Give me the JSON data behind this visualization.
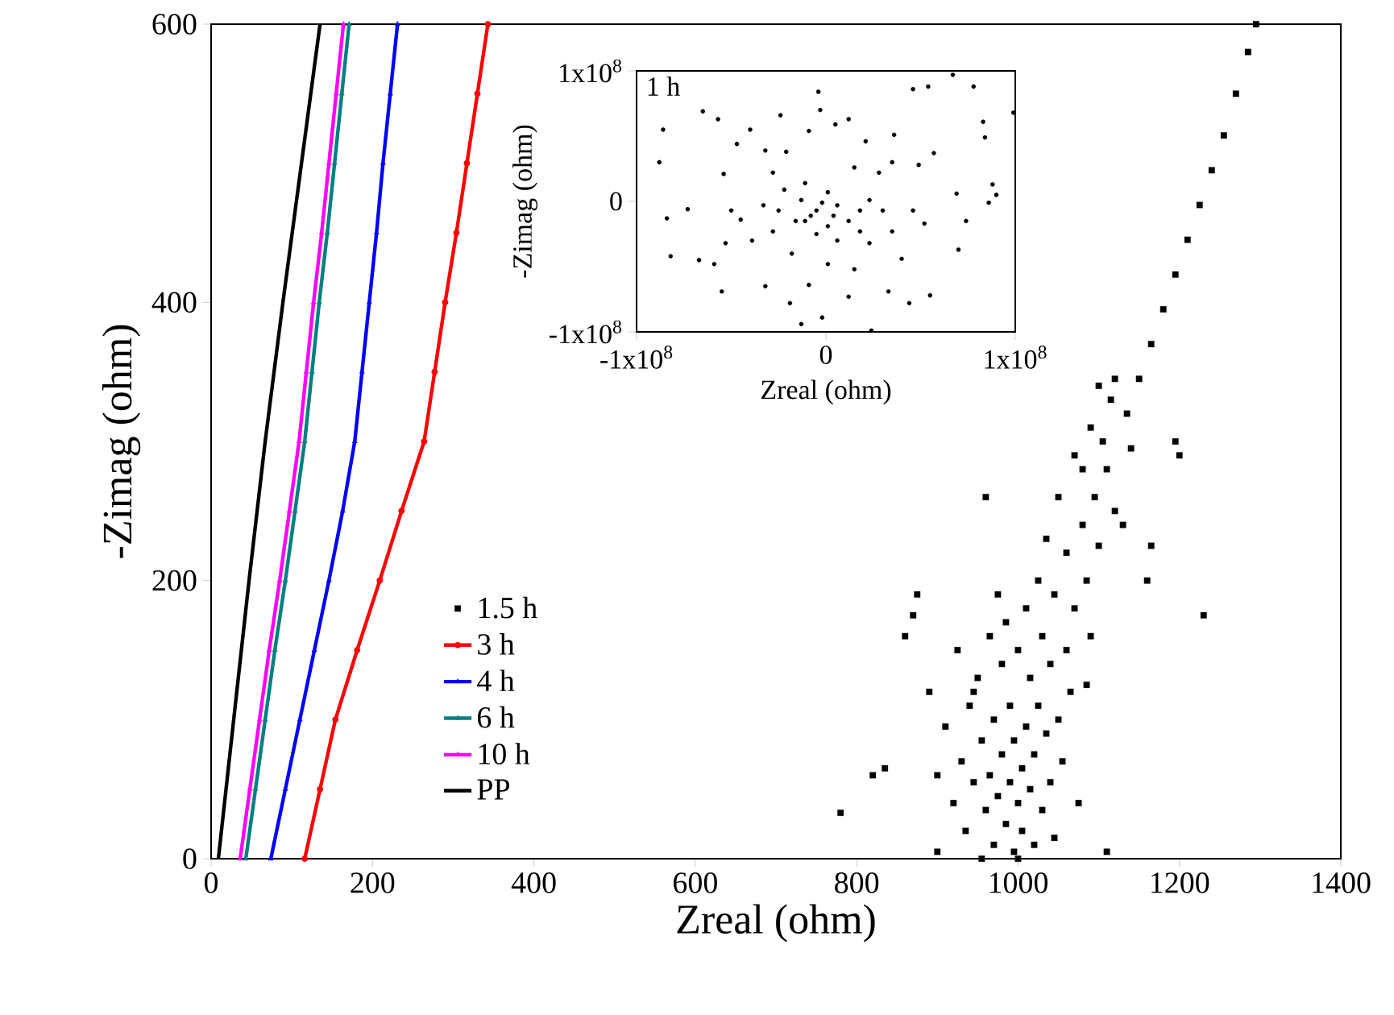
{
  "chart_data": [
    {
      "type": "scatter",
      "xlabel": "Zreal (ohm)",
      "ylabel": "-Zimag (ohm)",
      "xlim": [
        0,
        1400
      ],
      "ylim": [
        0,
        600
      ],
      "xticks": [
        0,
        200,
        400,
        600,
        800,
        1000,
        1200,
        1400
      ],
      "yticks": [
        0,
        200,
        400,
        600
      ],
      "legend": "bottom left",
      "grid": false,
      "series": [
        {
          "name": "1.5 h",
          "color": "#000000",
          "marker": "square",
          "type": "scatter",
          "x": [
            780,
            820,
            835,
            860,
            870,
            875,
            890,
            900,
            910,
            920,
            925,
            930,
            935,
            940,
            945,
            950,
            955,
            955,
            960,
            965,
            965,
            970,
            970,
            975,
            980,
            980,
            985,
            985,
            990,
            990,
            995,
            995,
            1000,
            1000,
            1005,
            1005,
            1010,
            1010,
            1015,
            1015,
            1020,
            1020,
            1025,
            1025,
            1030,
            1030,
            1035,
            1035,
            1040,
            1040,
            1045,
            1045,
            1050,
            1050,
            1055,
            1060,
            1060,
            1065,
            1070,
            1070,
            1075,
            1080,
            1080,
            1085,
            1090,
            1090,
            1095,
            1100,
            1100,
            1105,
            1110,
            1110,
            1115,
            1120,
            1120,
            1130,
            1140,
            1160,
            1165,
            1195,
            1200,
            1230,
            960,
            900,
            945,
            1085,
            1000,
            975,
            1135,
            1150,
            1165,
            1180,
            1195,
            1210,
            1225,
            1240,
            1255,
            1270,
            1285,
            1295
          ],
          "values": [
            33,
            60,
            65,
            160,
            175,
            190,
            120,
            5,
            95,
            40,
            150,
            70,
            20,
            110,
            55,
            130,
            0,
            85,
            35,
            160,
            60,
            10,
            100,
            45,
            75,
            140,
            25,
            170,
            55,
            110,
            5,
            85,
            40,
            150,
            65,
            20,
            95,
            180,
            50,
            130,
            10,
            75,
            200,
            110,
            35,
            160,
            90,
            230,
            55,
            140,
            15,
            190,
            100,
            260,
            70,
            220,
            150,
            120,
            290,
            180,
            40,
            240,
            280,
            200,
            310,
            160,
            260,
            340,
            225,
            300,
            5,
            280,
            330,
            250,
            345,
            240,
            295,
            200,
            225,
            300,
            290,
            175,
            260,
            60,
            120,
            125,
            0,
            190,
            320,
            345,
            370,
            395,
            420,
            445,
            470,
            495,
            520,
            550,
            580,
            600
          ]
        },
        {
          "name": "3 h",
          "color": "#ff0000",
          "marker": "circle",
          "type": "line",
          "x": [
            116,
            135,
            154,
            181,
            209,
            236,
            264,
            277,
            290,
            304,
            317,
            330,
            343
          ],
          "values": [
            0,
            50,
            100,
            150,
            200,
            250,
            300,
            350,
            400,
            450,
            500,
            550,
            600
          ]
        },
        {
          "name": "4 h",
          "color": "#0000ff",
          "marker": "triangle",
          "type": "line",
          "x": [
            74,
            92,
            110,
            128,
            146,
            163,
            178,
            187,
            196,
            205,
            213,
            222,
            231
          ],
          "values": [
            0,
            50,
            100,
            150,
            200,
            250,
            300,
            350,
            400,
            450,
            500,
            550,
            600
          ]
        },
        {
          "name": "6 h",
          "color": "#008080",
          "marker": "triangle-down",
          "type": "line",
          "x": [
            43,
            55,
            67,
            79,
            92,
            104,
            116,
            125,
            134,
            144,
            153,
            162,
            171
          ],
          "values": [
            0,
            50,
            100,
            150,
            200,
            250,
            300,
            350,
            400,
            450,
            500,
            550,
            600
          ]
        },
        {
          "name": "10 h",
          "color": "#ff00ff",
          "marker": "triangle-left",
          "type": "line",
          "x": [
            36,
            48,
            60,
            72,
            85,
            97,
            109,
            118,
            127,
            137,
            146,
            155,
            164
          ],
          "values": [
            0,
            50,
            100,
            150,
            200,
            250,
            300,
            350,
            400,
            450,
            500,
            550,
            600
          ]
        },
        {
          "name": "PP",
          "color": "#000000",
          "marker": "none",
          "type": "line",
          "x": [
            9,
            28,
            47,
            67,
            89,
            112,
            135
          ],
          "values": [
            0,
            100,
            200,
            300,
            400,
            500,
            600
          ]
        }
      ]
    },
    {
      "type": "scatter",
      "xlabel": "Zreal (ohm)",
      "ylabel": "-Zimag (ohm)",
      "xlim": [
        -100000000.0,
        100000000.0
      ],
      "ylim": [
        -100000000.0,
        100000000.0
      ],
      "xticks": [
        {
          "value": -100000000.0,
          "label": "-1x10$^{8}$"
        },
        0,
        {
          "value": 100000000.0,
          "label": "1x10$^{8}$"
        }
      ],
      "yticks": [
        {
          "value": -100000000.0,
          "label": "-1x10$^{8}$"
        },
        0,
        {
          "value": 100000000.0,
          "label": "1x10$^{8}$"
        }
      ],
      "annotations": [
        "1 h"
      ],
      "grid": false,
      "series": [
        {
          "color": "#000000",
          "marker": "circle",
          "x": [
            67000000.0,
            78000000.0,
            46000000.0,
            54000000.0,
            99000000.0,
            -4000000.0,
            -3000000.0,
            -65000000.0,
            -86000000.0,
            -57000000.0,
            -24000000.0,
            -88000000.0,
            -84000000.0,
            -82000000.0,
            -73000000.0,
            -67000000.0,
            -55000000.0,
            -59000000.0,
            -54000000.0,
            -47000000.0,
            -40000000.0,
            -32000000.0,
            -21000000.0,
            -9000000.0,
            5000000.0,
            12000000.0,
            21000000.0,
            36000000.0,
            49000000.0,
            57000000.0,
            69000000.0,
            83000000.0,
            84000000.0,
            88000000.0,
            90000000.0,
            86000000.0,
            74000000.0,
            70000000.0,
            55000000.0,
            44000000.0,
            33000000.0,
            24000000.0,
            -13000000.0,
            -2000000.0,
            -19000000.0,
            -32000000.0,
            -9000000.0,
            12000000.0,
            15000000.0,
            1000000.0,
            -18000000.0,
            -39000000.0,
            -45000000.0,
            -33000000.0,
            -22000000.0,
            -11000000.0,
            1000000.0,
            6000000.0,
            -5000000.0,
            -11000000.0,
            1000000.0,
            12000000.0,
            18000000.0,
            23000000.0,
            30000000.0,
            35000000.0,
            46000000.0,
            52000000.0,
            40000000.0,
            23000000.0,
            6000000.0,
            -5000000.0,
            -16000000.0,
            -25000000.0,
            -13000000.0,
            -2000000.0,
            4000000.0,
            -8000000.0,
            18000000.0,
            -28000000.0,
            -50000000.0,
            -53000000.0,
            28000000.0,
            35000000.0,
            -28000000.0,
            15000000.0
          ],
          "values": [
            97000000.0,
            88000000.0,
            86000000.0,
            88000000.0,
            68000000.0,
            84000000.0,
            70000000.0,
            69000000.0,
            55000000.0,
            63000000.0,
            66000000.0,
            30000000.0,
            -13000000.0,
            -42000000.0,
            -6000000.0,
            -45000000.0,
            -69000000.0,
            -48000000.0,
            21000000.0,
            44000000.0,
            55000000.0,
            39000000.0,
            38000000.0,
            54000000.0,
            59000000.0,
            63000000.0,
            46000000.0,
            51000000.0,
            28000000.0,
            37000000.0,
            6000000.0,
            61000000.0,
            49000000.0,
            13000000.0,
            5000000.0,
            -1000000.0,
            -15000000.0,
            -37000000.0,
            -72000000.0,
            -78000000.0,
            -69000000.0,
            -99000000.0,
            -94000000.0,
            -89000000.0,
            -78000000.0,
            -65000000.0,
            -64000000.0,
            -73000000.0,
            -52000000.0,
            -48000000.0,
            -40000000.0,
            -30000000.0,
            -14000000.0,
            -3000000.0,
            9000000.0,
            14000000.0,
            7000000.0,
            -3000000.0,
            -7000000.0,
            -15000000.0,
            -19000000.0,
            -15000000.0,
            -7000000.0,
            1000000.0,
            -7000000.0,
            -23000000.0,
            -7000000.0,
            -17000000.0,
            -44000000.0,
            -32000000.0,
            -30000000.0,
            -25000000.0,
            -15000000.0,
            -7000000.0,
            1000000.0,
            -1000000.0,
            -11000000.0,
            -11000000.0,
            -23000000.0,
            -23000000.0,
            -7000000.0,
            -32000000.0,
            22000000.0,
            30000000.0,
            22000000.0,
            26000000.0
          ]
        }
      ]
    }
  ]
}
